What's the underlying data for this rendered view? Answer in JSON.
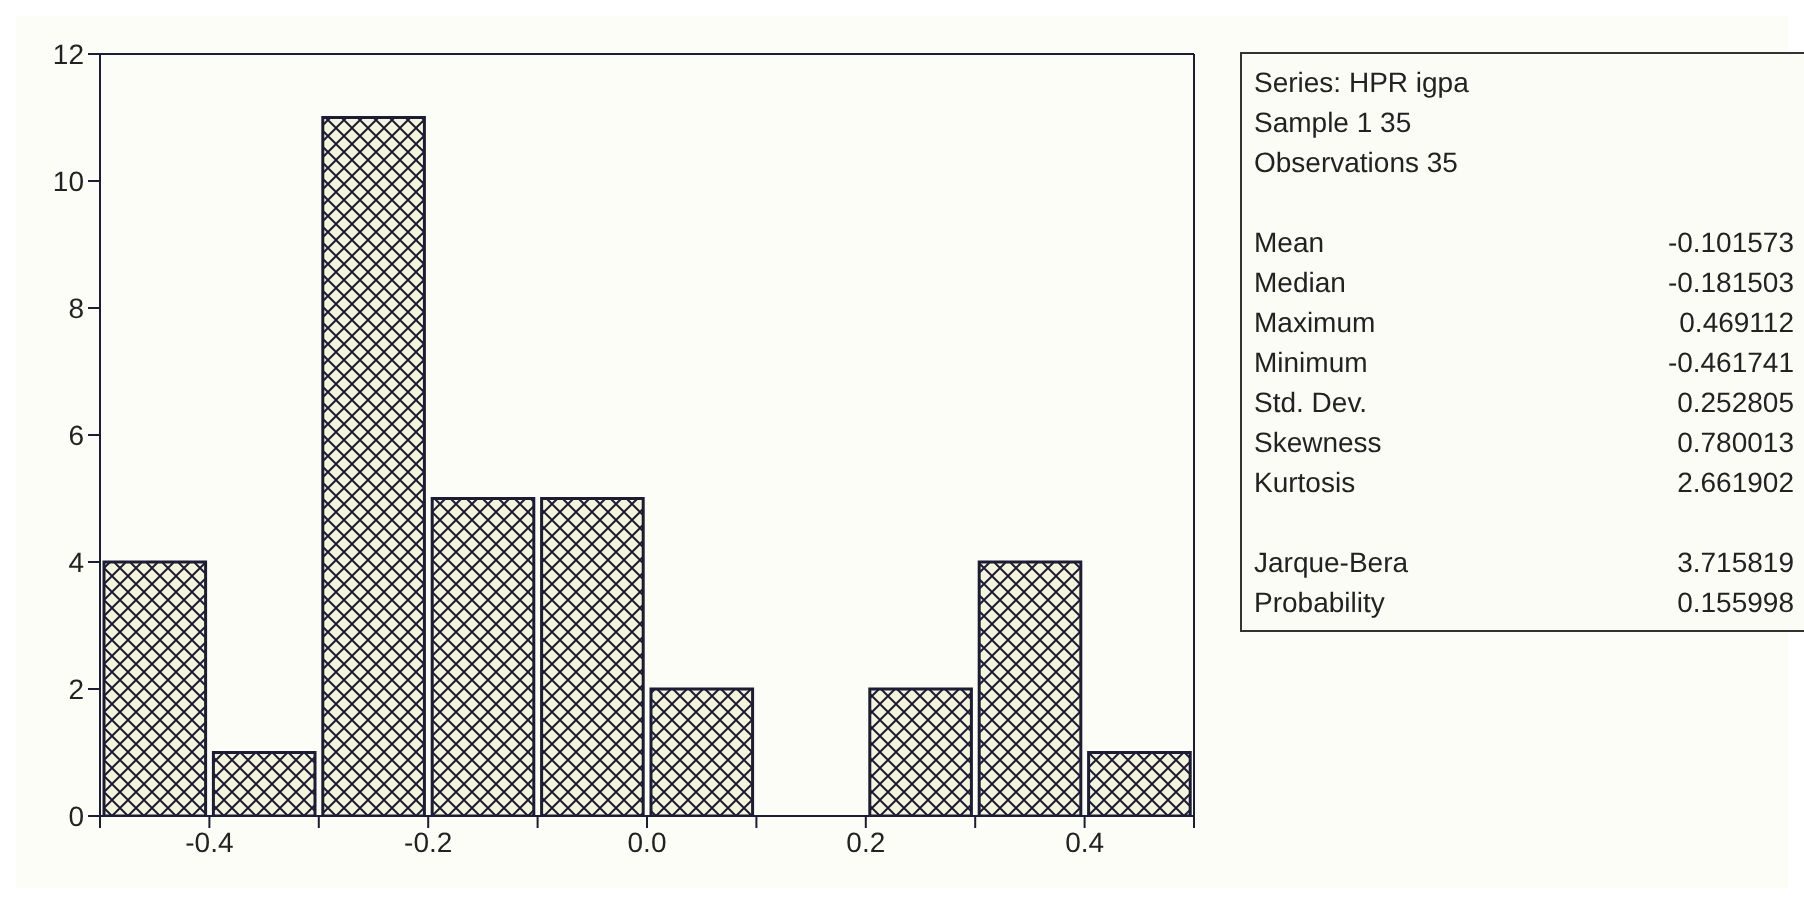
{
  "chart_data": [
    {
      "type": "histogram",
      "bins": [
        -0.5,
        -0.4,
        -0.3,
        -0.2,
        -0.1,
        0.0,
        0.1,
        0.2,
        0.3,
        0.4,
        0.5
      ],
      "values": [
        4,
        1,
        11,
        5,
        5,
        2,
        0,
        2,
        4,
        1
      ],
      "color": "#f4f4dc",
      "xlim": [
        -0.5,
        0.5
      ],
      "xticks": [
        {
          "value": -0.5,
          "label": null
        },
        -0.4,
        {
          "value": -0.3,
          "label": null
        },
        -0.2,
        {
          "value": -0.1,
          "label": null
        },
        {
          "value": 0,
          "label": "0.0"
        },
        {
          "value": 0.1,
          "label": null
        },
        0.2,
        {
          "value": 0.3,
          "label": null
        },
        0.4,
        {
          "value": 0.5,
          "label": null
        }
      ],
      "ylim": [
        0,
        12
      ],
      "yticks": [
        0,
        2,
        4,
        6,
        8,
        10,
        12
      ]
    },
    {
      "type": "other",
      "annotations": [
        "Series: HPR igpa",
        "Sample 1 35",
        "Observations 35"
      ],
      "categories": [
        "Mean",
        "Median",
        "Maximum",
        "Minimum",
        "Std. Dev.",
        "Skewness",
        "Kurtosis",
        "Jarque-Bera",
        "Probability"
      ],
      "values": [
        -0.101573,
        -0.181503,
        0.469112,
        -0.461741,
        0.252805,
        0.780013,
        2.661902,
        3.715819,
        0.155998
      ],
      "data_labels": true
    }
  ]
}
